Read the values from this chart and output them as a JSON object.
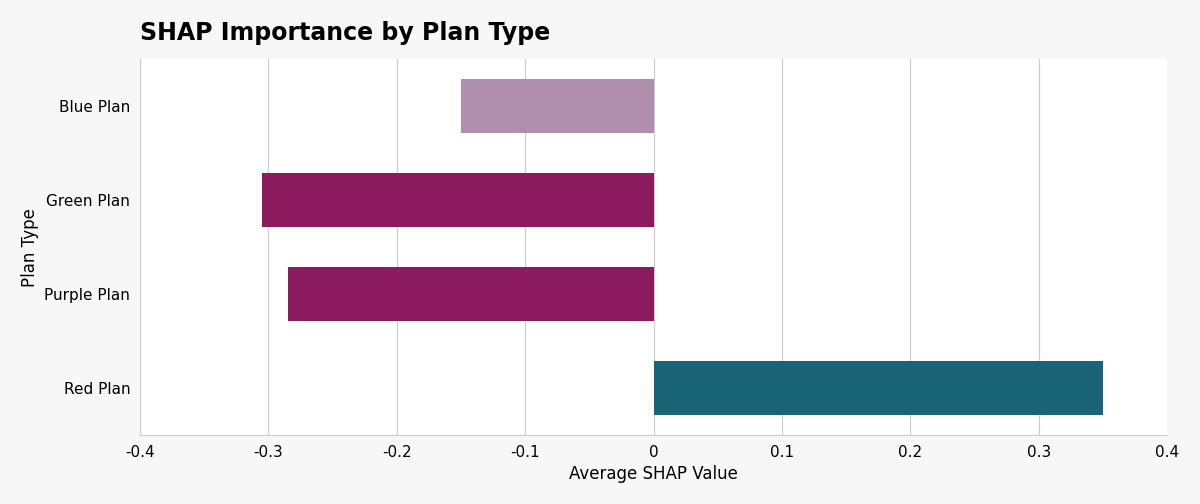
{
  "title": "SHAP Importance by Plan Type",
  "categories": [
    "Red Plan",
    "Purple Plan",
    "Green Plan",
    "Blue Plan"
  ],
  "values": [
    0.35,
    -0.285,
    -0.305,
    -0.15
  ],
  "bar_colors": [
    "#1a6478",
    "#8b1a5e",
    "#8b1a5e",
    "#b08fae"
  ],
  "xlabel": "Average SHAP Value",
  "ylabel": "Plan Type",
  "xlim": [
    -0.4,
    0.4
  ],
  "xticks": [
    -0.4,
    -0.3,
    -0.2,
    -0.1,
    0.0,
    0.1,
    0.2,
    0.3,
    0.4
  ],
  "title_fontsize": 17,
  "axis_fontsize": 12,
  "tick_fontsize": 11,
  "background_color": "#f7f7f7",
  "plot_bg_color": "#ffffff",
  "bar_height": 0.58,
  "grid_color": "#cccccc"
}
